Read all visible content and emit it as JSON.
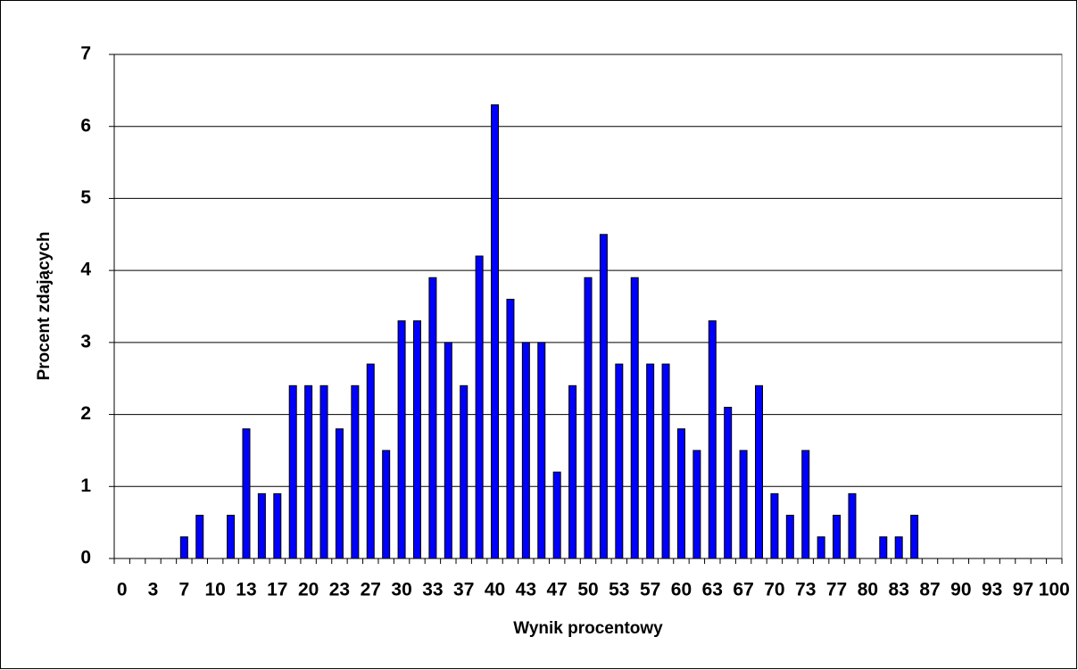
{
  "chart_data": {
    "type": "bar",
    "x_label": "Wynik procentowy",
    "y_label": "Procent zdających",
    "categories": [
      "0",
      null,
      "3",
      null,
      "7",
      null,
      "10",
      null,
      "13",
      null,
      "17",
      null,
      "20",
      null,
      "23",
      null,
      "27",
      null,
      "30",
      null,
      "33",
      null,
      "37",
      null,
      "40",
      null,
      "43",
      null,
      "47",
      null,
      "50",
      null,
      "53",
      null,
      "57",
      null,
      "60",
      null,
      "63",
      null,
      "67",
      null,
      "70",
      null,
      "73",
      null,
      "77",
      null,
      "80",
      null,
      "83",
      null,
      "87",
      null,
      "90",
      null,
      "93",
      null,
      "97",
      null,
      "100"
    ],
    "values": [
      0,
      0,
      0,
      0,
      0.3,
      0.6,
      0,
      0.6,
      1.8,
      0.9,
      0.9,
      2.4,
      2.4,
      2.4,
      1.8,
      2.4,
      2.7,
      1.5,
      3.3,
      3.3,
      3.9,
      3.0,
      2.4,
      4.2,
      6.3,
      3.6,
      3.0,
      3.0,
      1.2,
      2.4,
      3.9,
      4.5,
      2.7,
      3.9,
      2.7,
      2.7,
      1.8,
      1.5,
      3.3,
      2.1,
      1.5,
      2.4,
      0.9,
      0.6,
      1.5,
      0.3,
      0.6,
      0.9,
      0,
      0.3,
      0.3,
      0.6,
      0,
      0,
      0,
      0,
      0,
      0,
      0,
      0,
      0
    ],
    "color": "#0000ff",
    "ylim": [
      0,
      7
    ],
    "yticks": [
      0,
      1,
      2,
      3,
      4,
      5,
      6,
      7
    ],
    "grid": true
  }
}
